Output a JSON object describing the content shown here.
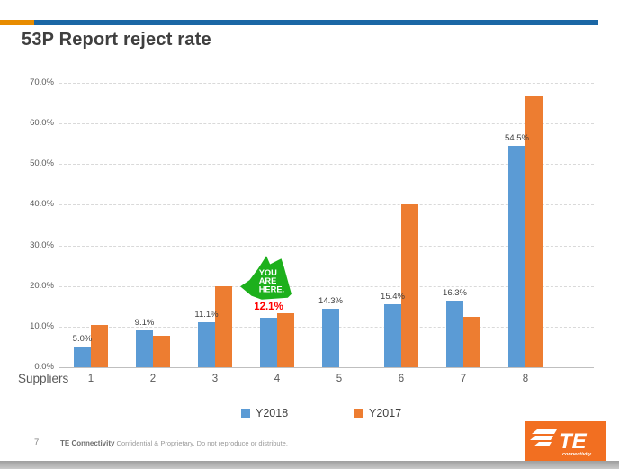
{
  "slide": {
    "title": "53P Report reject rate",
    "page_number": "7",
    "footer_bold": "TE Connectivity",
    "footer_rest": " Confidential & Proprietary. Do not reproduce or distribute.",
    "logo": {
      "text": "TE",
      "subtext": "connectivity",
      "box_color": "#f26f21"
    }
  },
  "colors": {
    "topbar_orange": "#e88c00",
    "topbar_blue": "#1b67a5",
    "gridline": "#d9d9d9",
    "axis": "#bfbfbf",
    "title_text": "#3f3f3f",
    "tick_text": "#595959"
  },
  "chart_data": {
    "type": "bar",
    "title": "53P Report reject rate",
    "xlabel": "Suppliers",
    "ylabel": "",
    "ylim": [
      0,
      70
    ],
    "grid": true,
    "legend_position": "bottom",
    "yticks": [
      {
        "value": 0,
        "label": "0.0%"
      },
      {
        "value": 10,
        "label": "10.0%"
      },
      {
        "value": 20,
        "label": "20.0%"
      },
      {
        "value": 30,
        "label": "30.0%"
      },
      {
        "value": 40,
        "label": "40.0%"
      },
      {
        "value": 50,
        "label": "50.0%"
      },
      {
        "value": 60,
        "label": "60.0%"
      },
      {
        "value": 70,
        "label": "70.0%"
      }
    ],
    "categories": [
      "1",
      "2",
      "3",
      "4",
      "5",
      "6",
      "7",
      "8"
    ],
    "series": [
      {
        "name": "Y2018",
        "color": "#5b9bd5",
        "values": [
          5.0,
          9.1,
          11.1,
          12.1,
          14.3,
          15.4,
          16.3,
          54.5
        ],
        "labels": [
          "5.0%",
          "9.1%",
          "11.1%",
          "12.1%",
          "14.3%",
          "15.4%",
          "16.3%",
          "54.5%"
        ]
      },
      {
        "name": "Y2017",
        "color": "#ed7d31",
        "values": [
          10.4,
          7.7,
          20.0,
          13.2,
          null,
          40.0,
          12.5,
          66.7
        ],
        "labels": [
          null,
          null,
          null,
          null,
          null,
          null,
          null,
          null
        ]
      }
    ],
    "annotation": {
      "highlight_index": 3,
      "highlight_label": "12.1%",
      "highlight_color": "#ff0000",
      "arrow_color": "#1db01c",
      "lines": [
        "YOU",
        "ARE",
        "HERE."
      ]
    }
  }
}
